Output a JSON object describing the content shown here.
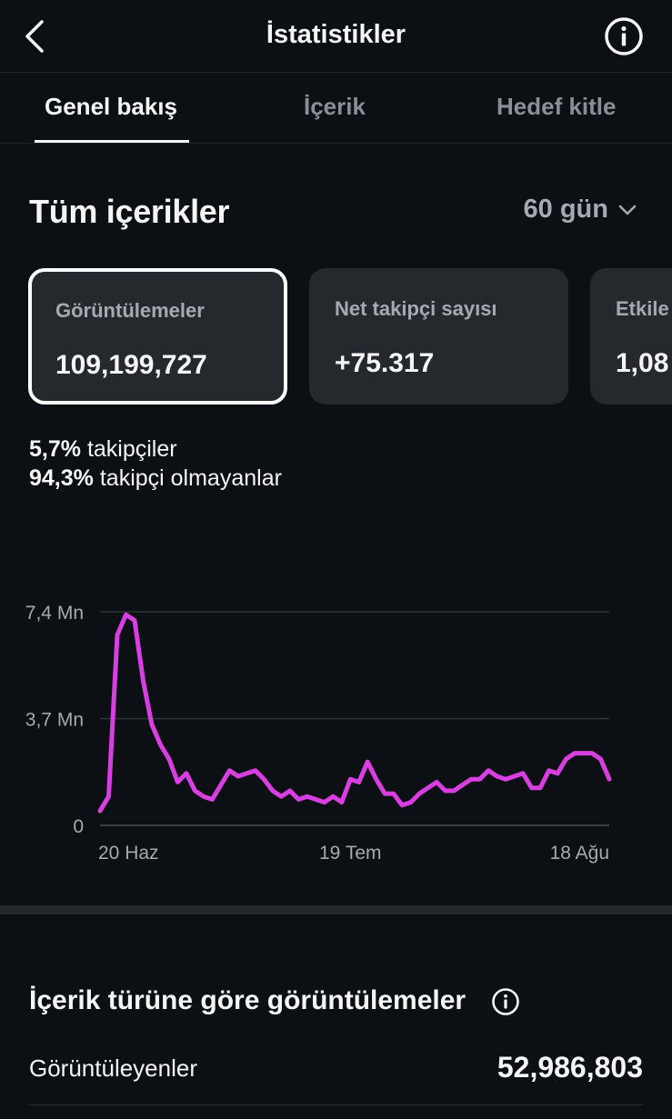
{
  "header": {
    "title": "İstatistikler",
    "back_icon": "chevron-left-icon",
    "info_icon": "info-icon"
  },
  "tabs": [
    {
      "label": "Genel bakış",
      "active": true
    },
    {
      "label": "İçerik",
      "active": false
    },
    {
      "label": "Hedef kitle",
      "active": false
    }
  ],
  "section": {
    "title": "Tüm içerikler",
    "range": "60 gün"
  },
  "cards": [
    {
      "label": "Görüntülemeler",
      "value": "109,199,727",
      "selected": true
    },
    {
      "label": "Net takipçi sayısı",
      "value": "+75.317",
      "selected": false
    },
    {
      "label": "Etkile",
      "value": "1,08",
      "selected": false
    }
  ],
  "breakdown": [
    {
      "pct": "5,7%",
      "label": "takipçiler"
    },
    {
      "pct": "94,3%",
      "label": "takipçi olmayanlar"
    }
  ],
  "colors": {
    "background": "#0c1014",
    "card": "#25292e",
    "line": "#d83ee0",
    "muted": "#a5aab0"
  },
  "chart_data": {
    "type": "line",
    "y_ticks": [
      "7,4 Mn",
      "3,7 Mn",
      "0"
    ],
    "y_tick_values": [
      7.4,
      3.7,
      0
    ],
    "ylim": [
      0,
      7.4
    ],
    "x_ticks": [
      "20 Haz",
      "19 Tem",
      "18 Ağu"
    ],
    "x_tick_index": [
      0,
      29,
      59
    ],
    "series": [
      {
        "values": [
          0.5,
          1.0,
          6.6,
          7.3,
          7.1,
          5.0,
          3.5,
          2.8,
          2.3,
          1.5,
          1.8,
          1.2,
          1.0,
          0.9,
          1.4,
          1.9,
          1.7,
          1.8,
          1.9,
          1.6,
          1.2,
          1.0,
          1.2,
          0.9,
          1.0,
          0.9,
          0.8,
          1.0,
          0.8,
          1.6,
          1.5,
          2.2,
          1.6,
          1.1,
          1.1,
          0.7,
          0.8,
          1.1,
          1.3,
          1.5,
          1.2,
          1.2,
          1.4,
          1.6,
          1.6,
          1.9,
          1.7,
          1.6,
          1.7,
          1.8,
          1.3,
          1.3,
          1.9,
          1.8,
          2.3,
          2.5,
          2.5,
          2.5,
          2.3,
          1.6
        ]
      }
    ],
    "grid": true
  },
  "content_type": {
    "title": "İçerik türüne göre görüntülemeler",
    "info_icon": "info-icon",
    "rows": [
      {
        "label": "Görüntüleyenler",
        "value": "52,986,803"
      }
    ]
  }
}
